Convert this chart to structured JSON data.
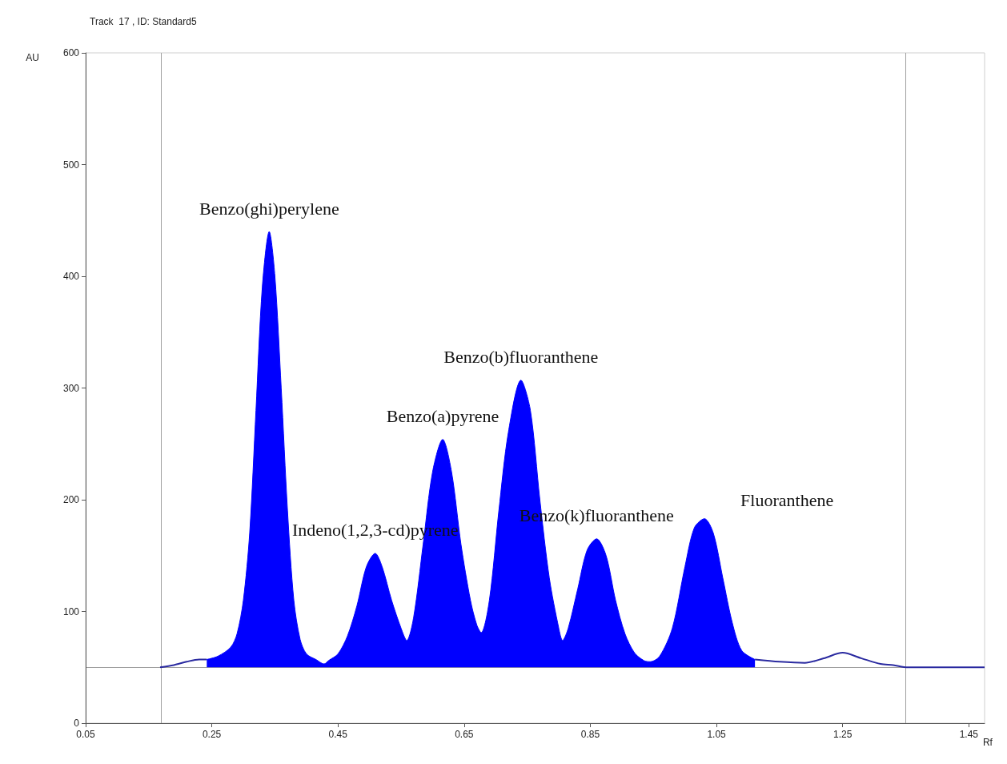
{
  "chart_data": {
    "type": "line",
    "title": "Track  17 , ID: Standard5",
    "xlabel": "Rf",
    "ylabel": "AU",
    "xlim": [
      0.05,
      1.475
    ],
    "xticks": [
      0.05,
      0.25,
      0.45,
      0.65,
      0.85,
      1.05,
      1.25,
      1.45
    ],
    "ylim": [
      0,
      600
    ],
    "yticks": [
      0,
      100,
      200,
      300,
      400,
      500,
      600
    ],
    "series": [
      {
        "color": "#2a2aa0",
        "x": [
          0.168,
          0.19,
          0.21,
          0.23,
          0.242,
          null,
          1.111,
          1.15,
          1.19,
          1.22,
          1.25,
          1.28,
          1.31,
          1.33,
          1.353,
          1.475
        ],
        "values": [
          50,
          52,
          55,
          57,
          57,
          null,
          57,
          55,
          54,
          58,
          63,
          58,
          53,
          52,
          50,
          50
        ]
      },
      {
        "type": "area",
        "color": "#0000ff",
        "x": [
          0.242,
          0.26,
          0.28,
          0.29,
          0.3,
          0.31,
          0.32,
          0.33,
          0.341,
          0.35,
          0.36,
          0.37,
          0.38,
          0.39,
          0.4,
          0.415,
          0.428,
          0.435,
          0.45,
          0.465,
          0.48,
          0.495,
          0.509,
          0.52,
          0.535,
          0.55,
          0.559,
          0.57,
          0.585,
          0.6,
          0.616,
          0.63,
          0.645,
          0.66,
          0.67,
          0.677,
          0.69,
          0.705,
          0.72,
          0.74,
          0.755,
          0.77,
          0.785,
          0.8,
          0.806,
          0.815,
          0.83,
          0.845,
          0.86,
          0.875,
          0.89,
          0.905,
          0.92,
          0.935,
          0.945,
          0.96,
          0.98,
          1.0,
          1.015,
          1.031,
          1.045,
          1.06,
          1.075,
          1.09,
          1.111
        ],
        "values": [
          57,
          60,
          68,
          80,
          110,
          170,
          280,
          390,
          440,
          400,
          300,
          190,
          110,
          75,
          62,
          57,
          53,
          56,
          62,
          78,
          105,
          140,
          152,
          140,
          110,
          85,
          74,
          95,
          160,
          225,
          254,
          225,
          160,
          110,
          88,
          81,
          110,
          190,
          260,
          307,
          280,
          200,
          130,
          85,
          74,
          85,
          120,
          155,
          165,
          150,
          110,
          80,
          63,
          56,
          55,
          60,
          85,
          140,
          175,
          183,
          170,
          130,
          90,
          65,
          57
        ]
      }
    ],
    "ref_lines": [
      {
        "axis": "y",
        "value": 50,
        "color": "#a0a0a0"
      },
      {
        "axis": "x",
        "value": 0.168,
        "color": "#a0a0a0"
      },
      {
        "axis": "x",
        "value": 1.353,
        "color": "#a0a0a0"
      }
    ],
    "annotations": [
      {
        "text": "Benzo(ghi)perylene",
        "x": 0.341,
        "y": 440
      },
      {
        "text": "Indeno(1,2,3-cd)pyrene",
        "x": 0.509,
        "y": 152
      },
      {
        "text": "Benzo(a)pyrene",
        "x": 0.616,
        "y": 254
      },
      {
        "text": "Benzo(b)fluoranthene",
        "x": 0.74,
        "y": 307
      },
      {
        "text": "Benzo(k)fluoranthene",
        "x": 0.86,
        "y": 165
      },
      {
        "text": "Fluoranthene",
        "x": 1.031,
        "y": 183
      }
    ]
  }
}
